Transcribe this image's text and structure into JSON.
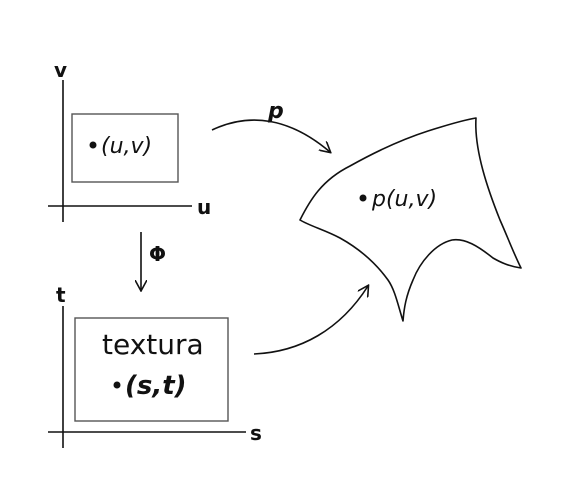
{
  "top_axes": {
    "v_label": "v",
    "u_label": "u"
  },
  "bottom_axes": {
    "t_label": "t",
    "s_label": "s"
  },
  "uv_box": {
    "point_label": "(u,v)"
  },
  "texture_box": {
    "title": "textura",
    "point_label": "(s,t)"
  },
  "surface": {
    "point_label": "p(u,v)"
  },
  "arrows": {
    "p_label": "p",
    "phi_label": "Φ"
  }
}
